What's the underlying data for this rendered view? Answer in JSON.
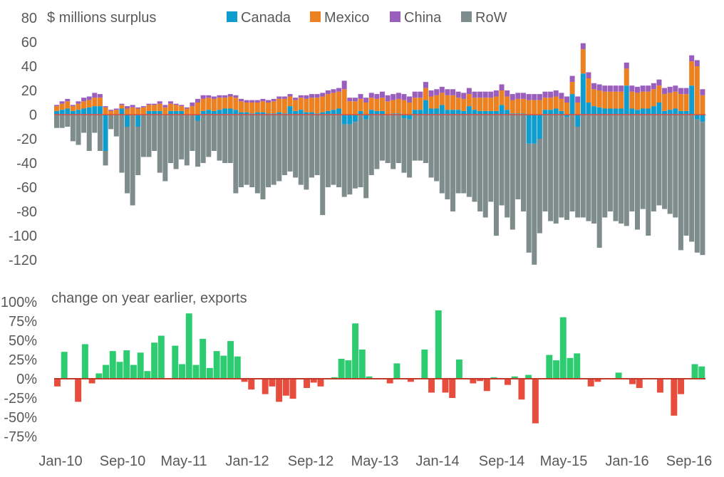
{
  "chart_data": [
    {
      "type": "bar",
      "subtype": "stacked",
      "ylabel": "$ millions surplus",
      "ylim": [
        -120,
        80
      ],
      "yticks": [
        -120,
        -100,
        -80,
        -60,
        -40,
        -20,
        0,
        20,
        40,
        60,
        80
      ],
      "ytick_labels": [
        "-120",
        "-100",
        "-80",
        "-60",
        "-40",
        "-20",
        "0",
        "20",
        "40",
        "60",
        "80"
      ],
      "legend": "top",
      "series": [
        {
          "name": "Canada",
          "color": "#0f9dcf",
          "values": [
            3,
            4,
            5,
            3,
            4,
            5,
            6,
            7,
            7,
            -30,
            0,
            0,
            5,
            -10,
            0,
            -10,
            0,
            3,
            3,
            3,
            0,
            3,
            3,
            3,
            0,
            0,
            -5,
            3,
            4,
            3,
            4,
            5,
            5,
            4,
            2,
            2,
            1,
            2,
            2,
            1,
            1,
            2,
            1,
            7,
            3,
            4,
            2,
            2,
            1,
            2,
            3,
            4,
            5,
            -8,
            -8,
            -6,
            3,
            -4,
            4,
            3,
            3,
            0,
            1,
            1,
            -3,
            -4,
            4,
            4,
            12,
            5,
            5,
            8,
            4,
            4,
            4,
            3,
            7,
            4,
            3,
            3,
            3,
            3,
            8,
            4,
            1,
            1,
            1,
            -24,
            -24,
            -20,
            4,
            4,
            5,
            3,
            -2,
            17,
            -10,
            34,
            10,
            7,
            6,
            5,
            5,
            5,
            5,
            24,
            5,
            4,
            5,
            5,
            7,
            10,
            3,
            4,
            5,
            3,
            3,
            24,
            -4,
            -6
          ]
        },
        {
          "name": "Mexico",
          "color": "#ec8122",
          "values": [
            4,
            5,
            6,
            4,
            5,
            6,
            6,
            7,
            7,
            6,
            3,
            4,
            3,
            5,
            6,
            5,
            6,
            5,
            5,
            6,
            6,
            6,
            5,
            4,
            5,
            7,
            10,
            10,
            10,
            10,
            10,
            9,
            10,
            10,
            9,
            8,
            9,
            8,
            9,
            9,
            10,
            11,
            12,
            8,
            9,
            10,
            11,
            12,
            13,
            13,
            14,
            14,
            14,
            21,
            11,
            11,
            10,
            10,
            10,
            10,
            11,
            11,
            11,
            12,
            12,
            10,
            10,
            10,
            10,
            10,
            11,
            10,
            12,
            12,
            10,
            10,
            10,
            10,
            11,
            11,
            11,
            12,
            12,
            11,
            11,
            12,
            12,
            12,
            12,
            12,
            10,
            10,
            10,
            10,
            10,
            10,
            10,
            20,
            20,
            14,
            14,
            14,
            14,
            14,
            14,
            14,
            14,
            14,
            14,
            14,
            14,
            14,
            14,
            14,
            14,
            14,
            14,
            20,
            40,
            16
          ]
        },
        {
          "name": "China",
          "color": "#9a5fbd",
          "values": [
            1,
            2,
            2,
            1,
            2,
            3,
            3,
            4,
            3,
            1,
            1,
            1,
            1,
            2,
            2,
            1,
            1,
            1,
            1,
            2,
            2,
            2,
            1,
            1,
            1,
            3,
            3,
            3,
            2,
            2,
            2,
            2,
            2,
            2,
            2,
            2,
            2,
            2,
            2,
            2,
            2,
            2,
            2,
            2,
            2,
            2,
            3,
            3,
            3,
            3,
            3,
            3,
            3,
            7,
            3,
            3,
            4,
            4,
            4,
            4,
            5,
            5,
            5,
            5,
            5,
            5,
            5,
            5,
            5,
            5,
            5,
            5,
            5,
            5,
            5,
            5,
            5,
            5,
            5,
            5,
            5,
            5,
            5,
            5,
            5,
            5,
            5,
            5,
            5,
            5,
            5,
            5,
            5,
            5,
            5,
            5,
            5,
            5,
            5,
            5,
            5,
            5,
            5,
            5,
            5,
            5,
            5,
            5,
            5,
            5,
            5,
            5,
            5,
            5,
            5,
            5,
            5,
            5,
            5,
            5
          ]
        },
        {
          "name": "RoW",
          "color": "#7f8c8c",
          "values": [
            -11,
            -11,
            -10,
            -22,
            -25,
            -15,
            -30,
            -15,
            -30,
            -12,
            -12,
            -18,
            -48,
            -55,
            -75,
            -40,
            -35,
            -35,
            -30,
            -48,
            -55,
            -40,
            -45,
            -37,
            -42,
            -30,
            -38,
            -40,
            -35,
            -30,
            -38,
            -40,
            -40,
            -65,
            -60,
            -58,
            -60,
            -65,
            -70,
            -60,
            -58,
            -55,
            -50,
            -47,
            -52,
            -58,
            -62,
            -52,
            -50,
            -83,
            -60,
            -58,
            -60,
            -60,
            -58,
            -55,
            -60,
            -65,
            -50,
            -45,
            -38,
            -40,
            -45,
            -40,
            -45,
            -48,
            -38,
            -38,
            -40,
            -52,
            -55,
            -65,
            -70,
            -80,
            -65,
            -65,
            -68,
            -72,
            -80,
            -85,
            -72,
            -100,
            -75,
            -85,
            -95,
            -70,
            -80,
            -90,
            -100,
            -78,
            -80,
            -88,
            -90,
            -85,
            -85,
            -80,
            -75,
            -85,
            -88,
            -90,
            -110,
            -85,
            -80,
            -88,
            -90,
            -92,
            -80,
            -95,
            -78,
            -100,
            -80,
            -75,
            -78,
            -82,
            -85,
            -112,
            -100,
            -105,
            -110,
            -110
          ]
        }
      ],
      "xtick_labels": [
        "Jan-10",
        "Sep-10",
        "May-11",
        "Jan-12",
        "Sep-12",
        "May-13",
        "Jan-14",
        "Sep-14",
        "May-15",
        "Jan-16",
        "Sep-16"
      ],
      "xtick_index": [
        0,
        8,
        16,
        24,
        32,
        40,
        48,
        56,
        64,
        72,
        80
      ]
    },
    {
      "type": "bar",
      "ylabel": "change on year earlier, exports",
      "ylim": [
        -75,
        100
      ],
      "yticks": [
        -75,
        -50,
        -25,
        0,
        25,
        50,
        75,
        100
      ],
      "ytick_labels": [
        "-75%",
        "-50%",
        "-25%",
        "0%",
        "25%",
        "50%",
        "75%",
        "100%"
      ],
      "positive_color": "#2ecc71",
      "negative_color": "#e74c3c",
      "zero_line_color": "#c0392b",
      "values": [
        -10,
        35,
        0,
        -30,
        45,
        -6,
        7,
        18,
        36,
        22,
        37,
        18,
        34,
        10,
        47,
        56,
        0,
        43,
        19,
        85,
        18,
        52,
        14,
        36,
        30,
        49,
        29,
        -4,
        -14,
        0,
        -20,
        -10,
        -30,
        -22,
        -26,
        0,
        -12,
        -5,
        -10,
        0,
        2,
        26,
        24,
        72,
        38,
        3,
        0,
        0,
        -6,
        20,
        0,
        -4,
        0,
        38,
        -18,
        89,
        -18,
        -25,
        25,
        0,
        -6,
        -3,
        -16,
        2,
        0,
        -8,
        3,
        -27,
        5,
        -58,
        0,
        31,
        24,
        80,
        27,
        33,
        0,
        -10,
        -4,
        0,
        -1,
        8,
        0,
        -7,
        -12,
        0,
        0,
        -18,
        0,
        -48,
        -20,
        0,
        19,
        16
      ],
      "xtick_labels": [
        "Jan-10",
        "Sep-10",
        "May-11",
        "Jan-12",
        "Sep-12",
        "May-13",
        "Jan-14",
        "Sep-14",
        "May-15",
        "Jan-16",
        "Sep-16"
      ]
    }
  ]
}
